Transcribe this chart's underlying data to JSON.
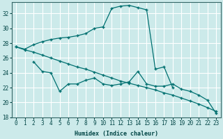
{
  "xlabel": "Humidex (Indice chaleur)",
  "bg_color": "#cceaea",
  "grid_color": "#ffffff",
  "line_color": "#007070",
  "xlim": [
    -0.5,
    23.5
  ],
  "ylim": [
    18,
    33.5
  ],
  "yticks": [
    18,
    20,
    22,
    24,
    26,
    28,
    30,
    32
  ],
  "xticks": [
    0,
    1,
    2,
    3,
    4,
    5,
    6,
    7,
    8,
    9,
    10,
    11,
    12,
    13,
    14,
    15,
    16,
    17,
    18,
    19,
    20,
    21,
    22,
    23
  ],
  "line1_x": [
    0,
    1,
    2,
    3,
    4,
    5,
    6,
    7,
    8,
    9,
    10,
    11,
    12,
    13,
    14,
    15,
    16,
    17,
    18
  ],
  "line1_y": [
    27.5,
    27.2,
    27.8,
    28.2,
    28.5,
    28.7,
    28.8,
    29.0,
    29.3,
    30.0,
    30.2,
    32.7,
    33.0,
    33.1,
    32.8,
    32.5,
    24.5,
    24.8,
    22.0
  ],
  "line2_x": [
    0,
    1,
    2,
    3,
    4,
    5,
    6,
    7,
    8,
    9,
    10,
    11,
    12,
    13,
    14,
    15,
    16,
    17,
    18,
    19,
    20,
    21,
    22,
    23
  ],
  "line2_y": [
    27.5,
    27.1,
    26.8,
    26.4,
    26.0,
    25.6,
    25.2,
    24.8,
    24.5,
    24.1,
    23.7,
    23.3,
    22.9,
    22.6,
    22.3,
    22.0,
    21.7,
    21.3,
    21.0,
    20.6,
    20.2,
    19.8,
    19.3,
    18.8
  ],
  "line3_x": [
    2,
    3,
    4,
    5,
    6,
    7,
    8,
    9,
    10,
    11,
    12,
    13,
    14,
    15,
    16,
    17,
    18,
    19,
    20,
    21,
    22,
    23
  ],
  "line3_y": [
    25.5,
    24.2,
    24.0,
    21.5,
    22.5,
    22.5,
    23.0,
    23.3,
    22.5,
    22.3,
    22.5,
    22.8,
    24.2,
    22.5,
    22.2,
    22.2,
    22.5,
    21.8,
    21.5,
    21.0,
    20.3,
    18.5
  ]
}
